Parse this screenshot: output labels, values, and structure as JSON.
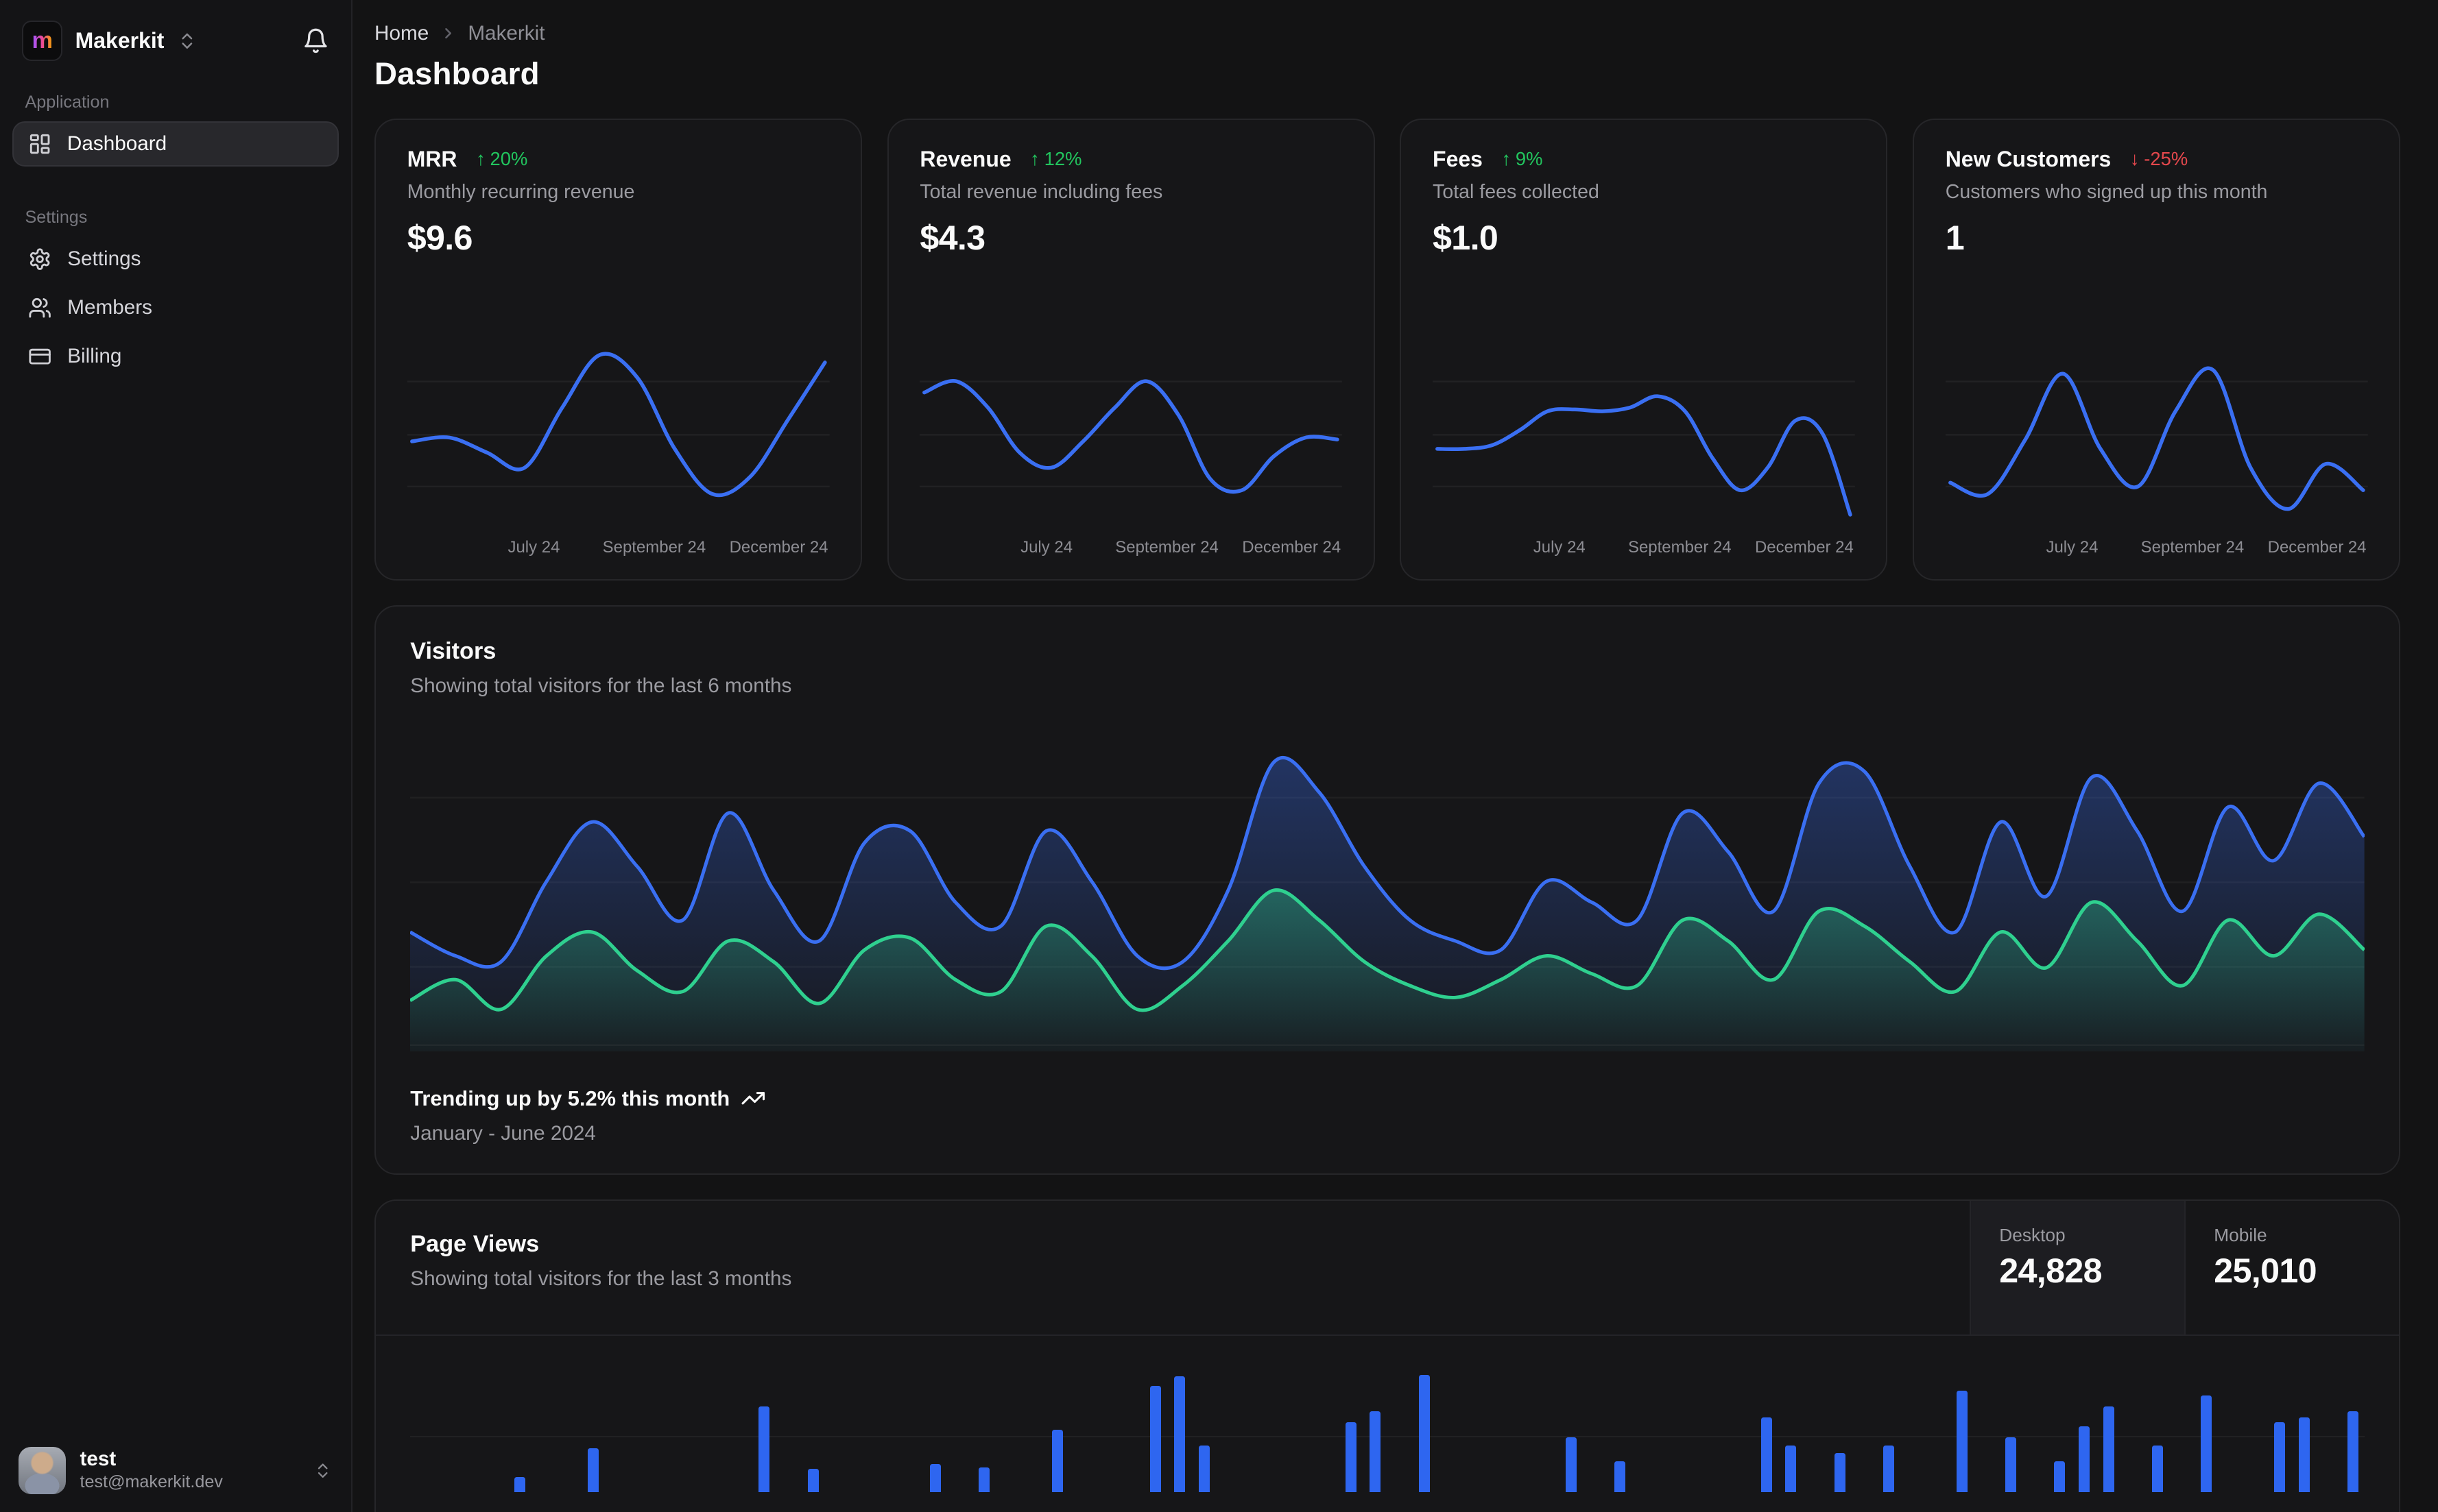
{
  "app": {
    "name": "Makerkit"
  },
  "sidebar": {
    "sections": [
      {
        "label": "Application",
        "items": [
          {
            "label": "Dashboard",
            "icon": "layout-dashboard-icon",
            "active": true
          }
        ]
      },
      {
        "label": "Settings",
        "items": [
          {
            "label": "Settings",
            "icon": "gear-icon",
            "active": false
          },
          {
            "label": "Members",
            "icon": "users-icon",
            "active": false
          },
          {
            "label": "Billing",
            "icon": "credit-card-icon",
            "active": false
          }
        ]
      }
    ],
    "user": {
      "name": "test",
      "email": "test@makerkit.dev"
    }
  },
  "header": {
    "breadcrumb": [
      "Home",
      "Makerkit"
    ],
    "title": "Dashboard"
  },
  "stat_cards": [
    {
      "title": "MRR",
      "trend": "20%",
      "trend_direction": "up",
      "subtitle": "Monthly recurring revenue",
      "value": "$9.6"
    },
    {
      "title": "Revenue",
      "trend": "12%",
      "trend_direction": "up",
      "subtitle": "Total revenue including fees",
      "value": "$4.3"
    },
    {
      "title": "Fees",
      "trend": "9%",
      "trend_direction": "up",
      "subtitle": "Total fees collected",
      "value": "$1.0"
    },
    {
      "title": "New Customers",
      "trend": "-25%",
      "trend_direction": "down",
      "subtitle": "Customers who signed up this month",
      "value": "1"
    }
  ],
  "visitors": {
    "title": "Visitors",
    "subtitle": "Showing total visitors for the last 6 months",
    "footer_headline": "Trending up by 5.2% this month",
    "footer_period": "January - June 2024"
  },
  "page_views": {
    "title": "Page Views",
    "subtitle": "Showing total visitors for the last 3 months",
    "tabs": [
      {
        "label": "Desktop",
        "value": "24,828",
        "active": true
      },
      {
        "label": "Mobile",
        "value": "25,010",
        "active": false
      }
    ]
  },
  "colors": {
    "accent_blue": "#2e66f0",
    "line_blue": "#3a6ff2",
    "line_green": "#2fd08f",
    "trend_up_green": "#22c55e",
    "trend_down_red": "#e5484d",
    "card_background": "#161618",
    "page_background": "#131314"
  },
  "chart_data": [
    {
      "id": "mrr",
      "type": "line",
      "title": "MRR sparkline",
      "color": "#3a6ff2",
      "x_labels": [
        "July 24",
        "September 24",
        "December 24"
      ],
      "x_label_pos": [
        30,
        58.5,
        88
      ],
      "y_axis": "hidden, values are normalized 0-100 estimates",
      "values": [
        44,
        46,
        38,
        30,
        62,
        90,
        78,
        40,
        16,
        25,
        55,
        86
      ]
    },
    {
      "id": "revenue",
      "type": "line",
      "title": "Revenue sparkline",
      "color": "#3a6ff2",
      "x_labels": [
        "July 24",
        "September 24",
        "December 24"
      ],
      "x_label_pos": [
        30,
        58.5,
        88
      ],
      "y_axis": "hidden, values are normalized 0-100 estimates",
      "values": [
        70,
        76,
        62,
        38,
        30,
        44,
        62,
        76,
        58,
        24,
        18,
        36,
        46,
        45
      ]
    },
    {
      "id": "fees",
      "type": "line",
      "title": "Fees sparkline",
      "color": "#3a6ff2",
      "x_labels": [
        "July 24",
        "September 24",
        "December 24"
      ],
      "x_label_pos": [
        30,
        58.5,
        88
      ],
      "y_axis": "hidden, values are normalized 0-100 estimates",
      "values": [
        40,
        40,
        42,
        50,
        60,
        61,
        60,
        62,
        68,
        60,
        35,
        18,
        30,
        55,
        48,
        5
      ]
    },
    {
      "id": "new_customers",
      "type": "line",
      "title": "New Customers sparkline",
      "color": "#3a6ff2",
      "x_labels": [
        "July 24",
        "September 24",
        "December 24"
      ],
      "x_label_pos": [
        30,
        58.5,
        88
      ],
      "y_axis": "hidden, values are normalized 0-100 estimates",
      "values": [
        22,
        16,
        45,
        80,
        40,
        20,
        60,
        82,
        30,
        8,
        32,
        18
      ]
    },
    {
      "id": "visitors",
      "type": "area",
      "title": "Visitors (last 6 months)",
      "legend": "hidden",
      "grid": "faint horizontal lines",
      "y_axis": "hidden, normalized 0-100 estimates",
      "series": [
        {
          "name": "desktop",
          "color": "#3a6ff2",
          "values": [
            38,
            30,
            28,
            55,
            75,
            60,
            42,
            78,
            52,
            35,
            68,
            72,
            48,
            40,
            72,
            55,
            30,
            28,
            52,
            95,
            85,
            60,
            42,
            35,
            32,
            55,
            48,
            42,
            78,
            65,
            45,
            88,
            92,
            60,
            38,
            75,
            50,
            90,
            72,
            45,
            80,
            62,
            88,
            70
          ]
        },
        {
          "name": "mobile",
          "color": "#2fd08f",
          "values": [
            15,
            22,
            12,
            30,
            38,
            25,
            18,
            35,
            28,
            14,
            32,
            36,
            22,
            18,
            40,
            30,
            12,
            20,
            35,
            52,
            42,
            28,
            20,
            16,
            22,
            30,
            24,
            20,
            42,
            35,
            22,
            45,
            40,
            28,
            18,
            38,
            26,
            48,
            35,
            20,
            42,
            30,
            44,
            32
          ]
        }
      ]
    },
    {
      "id": "page_views",
      "type": "bar",
      "title": "Page Views (last 3 months, chart cropped at viewport bottom)",
      "color": "#2e66f0",
      "y_axis": "hidden, values are visible bar heights in px above crop line",
      "values": [
        0,
        0,
        0,
        0,
        10,
        0,
        0,
        28,
        0,
        0,
        0,
        0,
        0,
        0,
        55,
        0,
        15,
        0,
        0,
        0,
        0,
        18,
        0,
        16,
        0,
        0,
        40,
        0,
        0,
        0,
        68,
        74,
        30,
        0,
        0,
        0,
        0,
        0,
        45,
        52,
        0,
        75,
        0,
        0,
        0,
        0,
        0,
        35,
        0,
        20,
        0,
        0,
        0,
        0,
        0,
        48,
        30,
        0,
        25,
        0,
        30,
        0,
        0,
        65,
        0,
        35,
        0,
        20,
        42,
        55,
        0,
        30,
        0,
        62,
        0,
        0,
        45,
        48,
        0,
        52
      ]
    }
  ]
}
